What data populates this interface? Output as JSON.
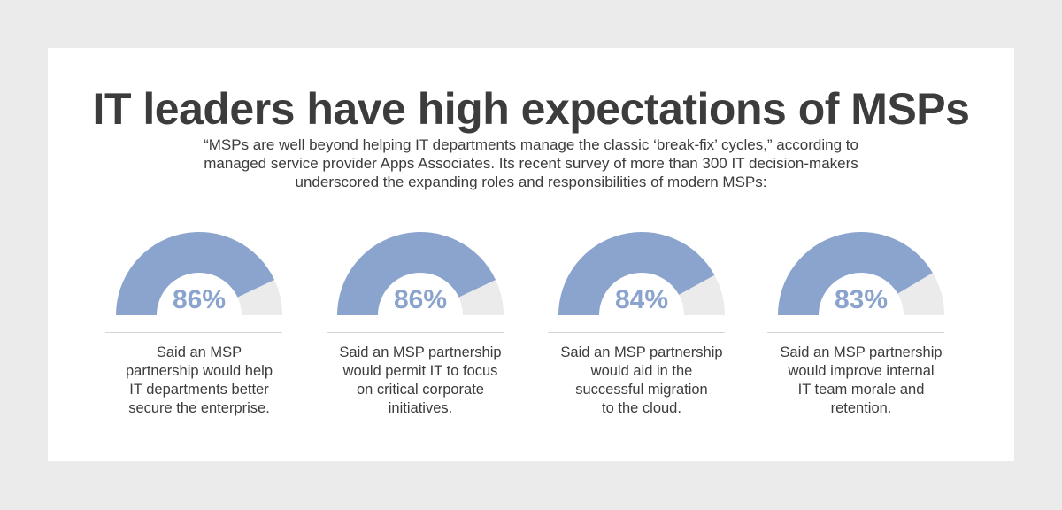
{
  "title": "IT leaders have high expectations of MSPs",
  "subtitle": "“MSPs are well beyond helping IT departments manage the classic ‘break-fix’ cycles,” according to managed service provider Apps Associates. Its recent survey of more than 300 IT decision-makers underscored the expanding roles and responsibilities of modern MSPs:",
  "colors": {
    "accent": "#8ba4ce",
    "track": "#ebebeb",
    "background": "#ebebeb",
    "card": "#ffffff",
    "text": "#3c3c3c"
  },
  "chart_data": {
    "type": "gauge",
    "unit": "%",
    "max": 100,
    "items": [
      {
        "value": 86,
        "label": "86%",
        "description": "Said an MSP\npartnership would help\nIT departments better\nsecure the enterprise."
      },
      {
        "value": 86,
        "label": "86%",
        "description": "Said an MSP partnership\nwould permit IT to focus\non critical corporate\ninitiatives."
      },
      {
        "value": 84,
        "label": "84%",
        "description": "Said an MSP partnership\nwould aid in the\nsuccessful migration\nto the cloud."
      },
      {
        "value": 83,
        "label": "83%",
        "description": "Said an MSP partnership\nwould improve internal\nIT team morale and\nretention."
      }
    ]
  }
}
